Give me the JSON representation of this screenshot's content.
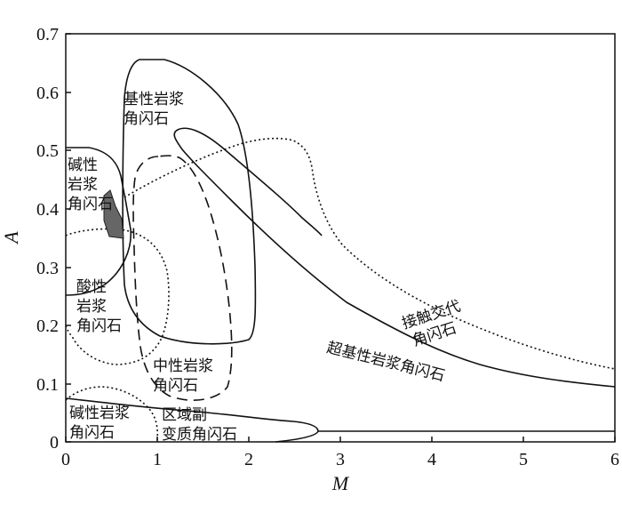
{
  "chart_data": {
    "type": "diagram",
    "xlabel": "M",
    "ylabel": "A",
    "xlim": [
      0,
      6
    ],
    "ylim": [
      0,
      0.7
    ],
    "x_ticks": [
      "0",
      "1",
      "2",
      "3",
      "4",
      "5",
      "6"
    ],
    "y_ticks": [
      "0",
      "0.1",
      "0.2",
      "0.3",
      "0.4",
      "0.5",
      "0.6",
      "0.7"
    ],
    "regions": [
      {
        "id": "mafic",
        "line_lines": [
          "基性岩浆",
          "角闪石"
        ]
      },
      {
        "id": "alkaline-upper",
        "line_lines": [
          "碱性",
          "岩浆",
          "角闪石"
        ]
      },
      {
        "id": "acidic",
        "line_lines": [
          "酸性",
          "岩浆",
          "角闪石"
        ]
      },
      {
        "id": "intermediate",
        "line_lines": [
          "中性岩浆",
          "角闪石"
        ]
      },
      {
        "id": "contact",
        "line_lines": [
          "接触交代",
          "角闪石"
        ]
      },
      {
        "id": "ultramafic",
        "line_lines": [
          "超基性岩浆角闪石"
        ]
      },
      {
        "id": "alkaline-lower",
        "line_lines": [
          "碱性岩浆",
          "角闪石"
        ]
      },
      {
        "id": "regional",
        "line_lines": [
          "区域副",
          "变质角闪石"
        ]
      }
    ]
  }
}
